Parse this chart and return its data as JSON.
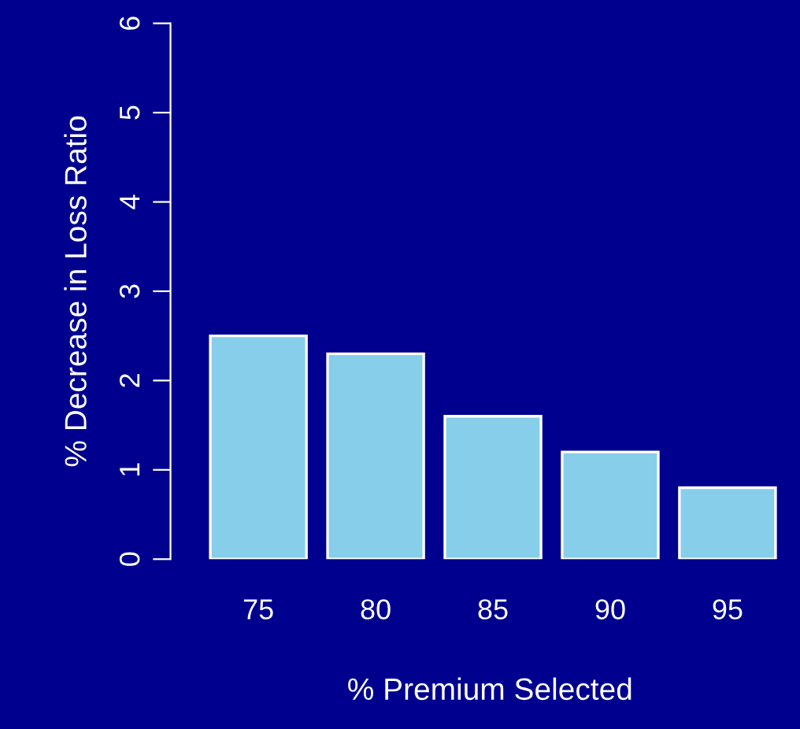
{
  "chart_data": {
    "type": "bar",
    "xlabel": "% Premium Selected",
    "ylabel": "% Decrease in Loss Ratio",
    "categories": [
      "75",
      "80",
      "85",
      "90",
      "95"
    ],
    "values": [
      2.5,
      2.3,
      1.6,
      1.2,
      0.8
    ],
    "color": "#87ceeb",
    "ylim": [
      0,
      6
    ],
    "yticks": [
      0,
      1,
      2,
      3,
      4,
      5,
      6
    ],
    "grid": false,
    "legend": false
  }
}
